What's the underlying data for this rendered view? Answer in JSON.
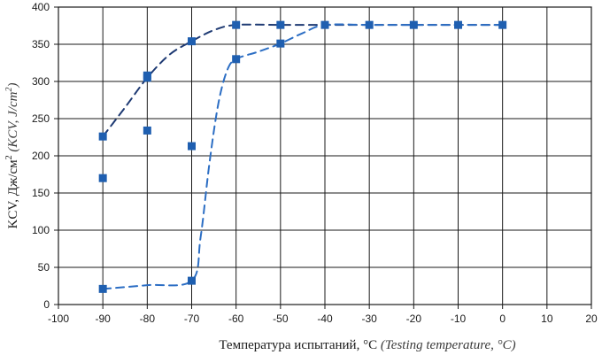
{
  "chart_data": {
    "type": "scatter",
    "title": "",
    "xlabel_main": "Температура испытаний, °C",
    "xlabel_italic": "(Testing temperature, °C)",
    "ylabel_main": "KCV, Дж/см",
    "ylabel_sup": "2",
    "ylabel_italic_open": "(KCV, J/cm",
    "ylabel_italic_sup": "2",
    "ylabel_italic_close": ")",
    "xlim": [
      -100,
      20
    ],
    "ylim": [
      0,
      400
    ],
    "x_ticks": [
      -100,
      -90,
      -80,
      -70,
      -60,
      -50,
      -40,
      -30,
      -20,
      -10,
      0,
      10,
      20
    ],
    "y_ticks": [
      0,
      50,
      100,
      150,
      200,
      250,
      300,
      350,
      400
    ],
    "grid": true,
    "colors": {
      "marker": "#1f5fb0",
      "upper_curve": "#1e3a73",
      "lower_curve": "#2c6ec4",
      "grid": "#1a1a1a"
    },
    "points": [
      {
        "x": -90,
        "y": 226
      },
      {
        "x": -90,
        "y": 170
      },
      {
        "x": -90,
        "y": 21
      },
      {
        "x": -80,
        "y": 308
      },
      {
        "x": -80,
        "y": 305
      },
      {
        "x": -80,
        "y": 234
      },
      {
        "x": -70,
        "y": 354
      },
      {
        "x": -70,
        "y": 213
      },
      {
        "x": -70,
        "y": 32
      },
      {
        "x": -60,
        "y": 376
      },
      {
        "x": -60,
        "y": 330
      },
      {
        "x": -50,
        "y": 376
      },
      {
        "x": -50,
        "y": 351
      },
      {
        "x": -40,
        "y": 376
      },
      {
        "x": -30,
        "y": 376
      },
      {
        "x": -20,
        "y": 376
      },
      {
        "x": -10,
        "y": 376
      },
      {
        "x": 0,
        "y": 376
      }
    ],
    "series": [
      {
        "style": "dashed",
        "x": [
          -90,
          -85,
          -80,
          -75,
          -70,
          -65,
          -60,
          -50,
          -40,
          -30,
          -20,
          -10,
          0
        ],
        "y": [
          226,
          265,
          305,
          336,
          354,
          369,
          376,
          376,
          376,
          376,
          376,
          376,
          376
        ]
      },
      {
        "style": "dashed",
        "x": [
          -90,
          -80,
          -70,
          -68,
          -66,
          -64,
          -62,
          -60,
          -55,
          -50,
          -45,
          -40,
          -30,
          -20,
          -10,
          0
        ],
        "y": [
          21,
          26,
          32,
          90,
          190,
          270,
          315,
          330,
          340,
          351,
          365,
          376,
          376,
          376,
          376,
          376
        ]
      }
    ]
  }
}
